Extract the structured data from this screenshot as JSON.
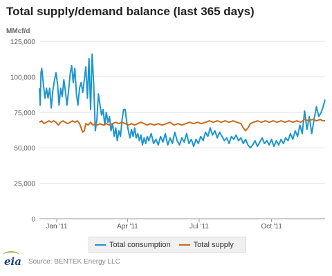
{
  "chart_data": {
    "type": "line",
    "title": "Total supply/demand balance (last 365 days)",
    "ylabel": "MMcf/d",
    "ylim": [
      0,
      125000
    ],
    "yticks": [
      "0",
      "25,000",
      "50,000",
      "75,000",
      "100,000",
      "125,000"
    ],
    "xlim": [
      "2010-12-10",
      "2011-12-08"
    ],
    "xticks": [
      {
        "date": "2011-01-01",
        "label": "Jan '11"
      },
      {
        "date": "2011-04-01",
        "label": "Apr '11"
      },
      {
        "date": "2011-07-01",
        "label": "Jul '11"
      },
      {
        "date": "2011-10-01",
        "label": "Oct '11"
      }
    ],
    "grid": {
      "horizontal": true,
      "vertical": false
    },
    "legend_position": "bottom",
    "series": [
      {
        "name": "Total consumption",
        "color": "#1b95cf",
        "points": [
          [
            "2010-12-10",
            92000
          ],
          [
            "2010-12-11",
            80000
          ],
          [
            "2010-12-12",
            103000
          ],
          [
            "2010-12-13",
            106000
          ],
          [
            "2010-12-15",
            95000
          ],
          [
            "2010-12-17",
            85000
          ],
          [
            "2010-12-19",
            92000
          ],
          [
            "2010-12-21",
            85000
          ],
          [
            "2010-12-23",
            92000
          ],
          [
            "2010-12-25",
            78000
          ],
          [
            "2010-12-27",
            90000
          ],
          [
            "2010-12-29",
            97000
          ],
          [
            "2010-12-31",
            103000
          ],
          [
            "2011-01-02",
            95000
          ],
          [
            "2011-01-04",
            80000
          ],
          [
            "2011-01-06",
            92000
          ],
          [
            "2011-01-08",
            86000
          ],
          [
            "2011-01-10",
            98000
          ],
          [
            "2011-01-12",
            90000
          ],
          [
            "2011-01-14",
            80000
          ],
          [
            "2011-01-16",
            90000
          ],
          [
            "2011-01-18",
            102000
          ],
          [
            "2011-01-20",
            108000
          ],
          [
            "2011-01-22",
            96000
          ],
          [
            "2011-01-24",
            106000
          ],
          [
            "2011-01-26",
            88000
          ],
          [
            "2011-01-28",
            80000
          ],
          [
            "2011-01-30",
            92000
          ],
          [
            "2011-02-01",
            96000
          ],
          [
            "2011-02-03",
            89000
          ],
          [
            "2011-02-05",
            98000
          ],
          [
            "2011-02-07",
            107000
          ],
          [
            "2011-02-09",
            85000
          ],
          [
            "2011-02-11",
            113000
          ],
          [
            "2011-02-13",
            77000
          ],
          [
            "2011-02-15",
            116000
          ],
          [
            "2011-02-17",
            95000
          ],
          [
            "2011-02-19",
            62000
          ],
          [
            "2011-02-21",
            70000
          ],
          [
            "2011-02-23",
            88000
          ],
          [
            "2011-02-25",
            80000
          ],
          [
            "2011-02-27",
            73000
          ],
          [
            "2011-03-01",
            77000
          ],
          [
            "2011-03-03",
            66000
          ],
          [
            "2011-03-05",
            75000
          ],
          [
            "2011-03-07",
            68000
          ],
          [
            "2011-03-09",
            72000
          ],
          [
            "2011-03-11",
            62000
          ],
          [
            "2011-03-13",
            67000
          ],
          [
            "2011-03-15",
            58000
          ],
          [
            "2011-03-17",
            64000
          ],
          [
            "2011-03-19",
            55000
          ],
          [
            "2011-03-21",
            62000
          ],
          [
            "2011-03-23",
            58000
          ],
          [
            "2011-03-25",
            70000
          ],
          [
            "2011-03-27",
            77000
          ],
          [
            "2011-03-29",
            77000
          ],
          [
            "2011-03-31",
            68000
          ],
          [
            "2011-04-02",
            62000
          ],
          [
            "2011-04-04",
            57000
          ],
          [
            "2011-04-06",
            63000
          ],
          [
            "2011-04-08",
            58000
          ],
          [
            "2011-04-10",
            64000
          ],
          [
            "2011-04-12",
            57000
          ],
          [
            "2011-04-14",
            60000
          ],
          [
            "2011-04-16",
            55000
          ],
          [
            "2011-04-18",
            59000
          ],
          [
            "2011-04-20",
            52000
          ],
          [
            "2011-04-22",
            57000
          ],
          [
            "2011-04-24",
            53000
          ],
          [
            "2011-04-26",
            58000
          ],
          [
            "2011-04-28",
            55000
          ],
          [
            "2011-05-01",
            60000
          ],
          [
            "2011-05-04",
            53000
          ],
          [
            "2011-05-07",
            56000
          ],
          [
            "2011-05-10",
            52000
          ],
          [
            "2011-05-13",
            58000
          ],
          [
            "2011-05-16",
            54000
          ],
          [
            "2011-05-19",
            60000
          ],
          [
            "2011-05-22",
            52000
          ],
          [
            "2011-05-25",
            57000
          ],
          [
            "2011-05-28",
            53000
          ],
          [
            "2011-05-31",
            61000
          ],
          [
            "2011-06-03",
            55000
          ],
          [
            "2011-06-06",
            52000
          ],
          [
            "2011-06-09",
            57000
          ],
          [
            "2011-06-12",
            54000
          ],
          [
            "2011-06-15",
            60000
          ],
          [
            "2011-06-18",
            53000
          ],
          [
            "2011-06-21",
            56000
          ],
          [
            "2011-06-24",
            51000
          ],
          [
            "2011-06-27",
            56000
          ],
          [
            "2011-06-30",
            53000
          ],
          [
            "2011-07-03",
            58000
          ],
          [
            "2011-07-06",
            55000
          ],
          [
            "2011-07-09",
            61000
          ],
          [
            "2011-07-12",
            58000
          ],
          [
            "2011-07-15",
            64000
          ],
          [
            "2011-07-18",
            59000
          ],
          [
            "2011-07-21",
            62000
          ],
          [
            "2011-07-24",
            57000
          ],
          [
            "2011-07-27",
            61000
          ],
          [
            "2011-07-30",
            58000
          ],
          [
            "2011-08-02",
            55000
          ],
          [
            "2011-08-05",
            57000
          ],
          [
            "2011-08-08",
            53000
          ],
          [
            "2011-08-11",
            58000
          ],
          [
            "2011-08-14",
            56000
          ],
          [
            "2011-08-17",
            59000
          ],
          [
            "2011-08-20",
            55000
          ],
          [
            "2011-08-23",
            57000
          ],
          [
            "2011-08-26",
            53000
          ],
          [
            "2011-08-29",
            56000
          ],
          [
            "2011-09-01",
            52000
          ],
          [
            "2011-09-04",
            50000
          ],
          [
            "2011-09-07",
            52000
          ],
          [
            "2011-09-10",
            55000
          ],
          [
            "2011-09-13",
            51000
          ],
          [
            "2011-09-16",
            54000
          ],
          [
            "2011-09-19",
            57000
          ],
          [
            "2011-09-22",
            53000
          ],
          [
            "2011-09-25",
            55000
          ],
          [
            "2011-09-28",
            52000
          ],
          [
            "2011-10-01",
            56000
          ],
          [
            "2011-10-04",
            51000
          ],
          [
            "2011-10-07",
            55000
          ],
          [
            "2011-10-10",
            52000
          ],
          [
            "2011-10-13",
            56000
          ],
          [
            "2011-10-16",
            53000
          ],
          [
            "2011-10-19",
            57000
          ],
          [
            "2011-10-22",
            55000
          ],
          [
            "2011-10-25",
            60000
          ],
          [
            "2011-10-28",
            56000
          ],
          [
            "2011-10-31",
            62000
          ],
          [
            "2011-11-03",
            58000
          ],
          [
            "2011-11-06",
            66000
          ],
          [
            "2011-11-09",
            60000
          ],
          [
            "2011-11-12",
            76000
          ],
          [
            "2011-11-15",
            63000
          ],
          [
            "2011-11-18",
            72000
          ],
          [
            "2011-11-21",
            60000
          ],
          [
            "2011-11-24",
            70000
          ],
          [
            "2011-11-27",
            79000
          ],
          [
            "2011-11-30",
            72000
          ],
          [
            "2011-12-03",
            75000
          ],
          [
            "2011-12-05",
            78000
          ],
          [
            "2011-12-08",
            84000
          ]
        ]
      },
      {
        "name": "Total supply",
        "color": "#c66a1c",
        "points": [
          [
            "2010-12-10",
            68000
          ],
          [
            "2010-12-13",
            69000
          ],
          [
            "2010-12-16",
            67000
          ],
          [
            "2010-12-19",
            68000
          ],
          [
            "2010-12-22",
            69000
          ],
          [
            "2010-12-25",
            68000
          ],
          [
            "2010-12-28",
            69000
          ],
          [
            "2010-12-31",
            68000
          ],
          [
            "2011-01-03",
            66000
          ],
          [
            "2011-01-06",
            68000
          ],
          [
            "2011-01-09",
            69000
          ],
          [
            "2011-01-12",
            68000
          ],
          [
            "2011-01-15",
            67000
          ],
          [
            "2011-01-18",
            68000
          ],
          [
            "2011-01-21",
            69000
          ],
          [
            "2011-01-24",
            68000
          ],
          [
            "2011-01-27",
            69000
          ],
          [
            "2011-01-30",
            67000
          ],
          [
            "2011-02-01",
            64000
          ],
          [
            "2011-02-03",
            61000
          ],
          [
            "2011-02-05",
            62000
          ],
          [
            "2011-02-07",
            67000
          ],
          [
            "2011-02-10",
            66000
          ],
          [
            "2011-02-13",
            68000
          ],
          [
            "2011-02-16",
            66000
          ],
          [
            "2011-02-19",
            67000
          ],
          [
            "2011-02-22",
            66000
          ],
          [
            "2011-02-25",
            67000
          ],
          [
            "2011-03-01",
            66000
          ],
          [
            "2011-03-05",
            67000
          ],
          [
            "2011-03-09",
            66000
          ],
          [
            "2011-03-13",
            67000
          ],
          [
            "2011-03-17",
            68000
          ],
          [
            "2011-03-21",
            67000
          ],
          [
            "2011-03-25",
            68000
          ],
          [
            "2011-03-29",
            67000
          ],
          [
            "2011-04-02",
            66000
          ],
          [
            "2011-04-06",
            67000
          ],
          [
            "2011-04-10",
            66000
          ],
          [
            "2011-04-14",
            67000
          ],
          [
            "2011-04-18",
            68000
          ],
          [
            "2011-04-22",
            67000
          ],
          [
            "2011-04-26",
            66000
          ],
          [
            "2011-04-30",
            67000
          ],
          [
            "2011-05-05",
            66000
          ],
          [
            "2011-05-10",
            67000
          ],
          [
            "2011-05-15",
            66000
          ],
          [
            "2011-05-20",
            67000
          ],
          [
            "2011-05-25",
            68000
          ],
          [
            "2011-05-30",
            66000
          ],
          [
            "2011-06-04",
            67000
          ],
          [
            "2011-06-09",
            66000
          ],
          [
            "2011-06-14",
            67000
          ],
          [
            "2011-06-19",
            68000
          ],
          [
            "2011-06-24",
            67000
          ],
          [
            "2011-06-29",
            68000
          ],
          [
            "2011-07-04",
            67000
          ],
          [
            "2011-07-09",
            68000
          ],
          [
            "2011-07-14",
            69000
          ],
          [
            "2011-07-19",
            68000
          ],
          [
            "2011-07-24",
            69000
          ],
          [
            "2011-07-29",
            68000
          ],
          [
            "2011-08-03",
            69000
          ],
          [
            "2011-08-08",
            68000
          ],
          [
            "2011-08-13",
            69000
          ],
          [
            "2011-08-18",
            68000
          ],
          [
            "2011-08-23",
            67000
          ],
          [
            "2011-08-26",
            64000
          ],
          [
            "2011-08-29",
            62000
          ],
          [
            "2011-09-01",
            64000
          ],
          [
            "2011-09-04",
            67000
          ],
          [
            "2011-09-08",
            68000
          ],
          [
            "2011-09-13",
            69000
          ],
          [
            "2011-09-18",
            68000
          ],
          [
            "2011-09-23",
            69000
          ],
          [
            "2011-09-28",
            68000
          ],
          [
            "2011-10-03",
            69000
          ],
          [
            "2011-10-08",
            68000
          ],
          [
            "2011-10-13",
            69000
          ],
          [
            "2011-10-18",
            68000
          ],
          [
            "2011-10-23",
            69000
          ],
          [
            "2011-10-28",
            68000
          ],
          [
            "2011-11-02",
            69000
          ],
          [
            "2011-11-07",
            68000
          ],
          [
            "2011-11-12",
            70000
          ],
          [
            "2011-11-17",
            69000
          ],
          [
            "2011-11-22",
            70000
          ],
          [
            "2011-11-27",
            69000
          ],
          [
            "2011-12-02",
            70000
          ],
          [
            "2011-12-05",
            69000
          ],
          [
            "2011-12-08",
            69000
          ]
        ]
      }
    ]
  },
  "page": {
    "title": "Total supply/demand balance (last 365 days)",
    "unit": "MMcf/d",
    "legend": [
      "Total consumption",
      "Total supply"
    ],
    "logo_text": "eia",
    "source": "Source: BENTEK Energy LLC"
  }
}
